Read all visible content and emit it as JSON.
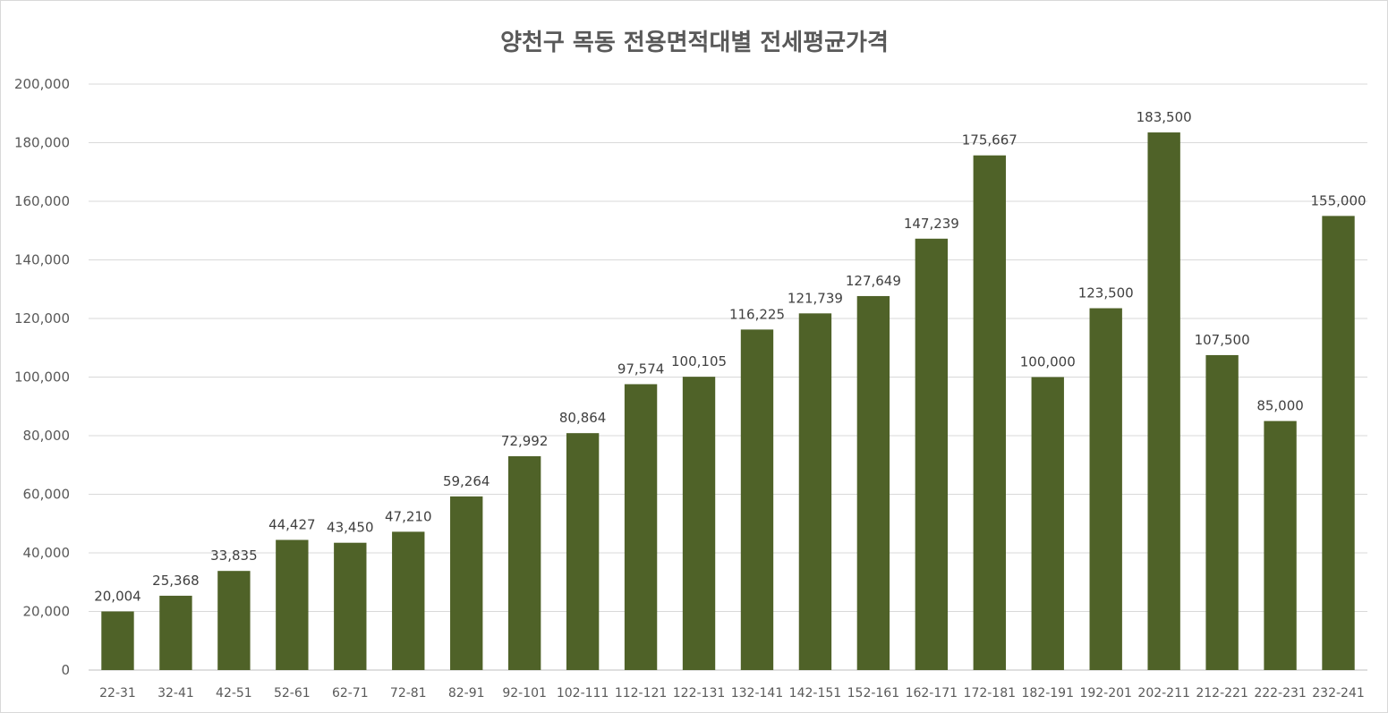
{
  "chart_data": {
    "type": "bar",
    "title": "양천구 목동 전용면적대별 전세평균가격",
    "xlabel": "",
    "ylabel": "",
    "categories": [
      "22-31",
      "32-41",
      "42-51",
      "52-61",
      "62-71",
      "72-81",
      "82-91",
      "92-101",
      "102-111",
      "112-121",
      "122-131",
      "132-141",
      "142-151",
      "152-161",
      "162-171",
      "172-181",
      "182-191",
      "192-201",
      "202-211",
      "212-221",
      "222-231",
      "232-241"
    ],
    "values": [
      20004,
      25368,
      33835,
      44427,
      43450,
      47210,
      59264,
      72992,
      80864,
      97574,
      100105,
      116225,
      121739,
      127649,
      147239,
      175667,
      100000,
      123500,
      183500,
      107500,
      85000,
      155000
    ],
    "value_labels": [
      "20,004",
      "25,368",
      "33,835",
      "44,427",
      "43,450",
      "47,210",
      "59,264",
      "72,992",
      "80,864",
      "97,574",
      "100,105",
      "116,225",
      "121,739",
      "127,649",
      "147,239",
      "175,667",
      "100,000",
      "123,500",
      "183,500",
      "107,500",
      "85,000",
      "155,000"
    ],
    "ylim": [
      0,
      200000
    ],
    "y_ticks": [
      0,
      20000,
      40000,
      60000,
      80000,
      100000,
      120000,
      140000,
      160000,
      180000,
      200000
    ],
    "y_tick_labels": [
      "0",
      "20,000",
      "40,000",
      "60,000",
      "80,000",
      "100,000",
      "120,000",
      "140,000",
      "160,000",
      "180,000",
      "200,000"
    ],
    "grid": true,
    "legend": "none",
    "bar_color": "#4F6228"
  }
}
